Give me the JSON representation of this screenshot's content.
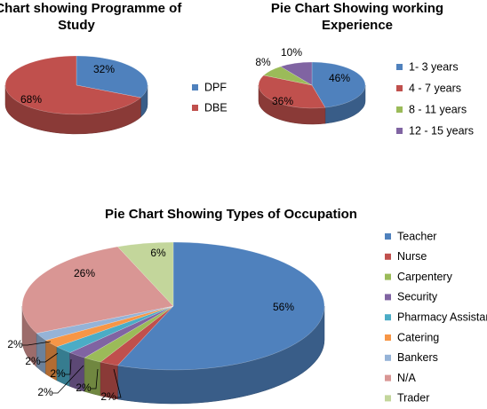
{
  "chart_data": [
    {
      "type": "pie",
      "title": "Pie Chart showing Programme of Study",
      "labels": [
        "DPF",
        "DBE"
      ],
      "values": [
        32,
        68
      ],
      "value_labels": [
        "32%",
        "68%"
      ],
      "colors": [
        "#4F81BD",
        "#C0504D"
      ],
      "legend": "right",
      "style": "3d"
    },
    {
      "type": "pie",
      "title": "Pie Chart Showing working Experience",
      "labels": [
        "1- 3 years",
        "4 - 7 years",
        "8 - 11 years",
        "12 - 15 years"
      ],
      "values": [
        46,
        36,
        8,
        10
      ],
      "value_labels": [
        "46%",
        "36%",
        "8%",
        "10%"
      ],
      "colors": [
        "#4F81BD",
        "#C0504D",
        "#9BBB59",
        "#8064A2"
      ],
      "legend": "right",
      "style": "3d"
    },
    {
      "type": "pie",
      "title": "Pie Chart Showing Types of Occupation",
      "labels": [
        "Teacher",
        "Nurse",
        "Carpentery",
        "Security",
        "Pharmacy Assistant",
        "Catering",
        "Bankers",
        "N/A",
        "Trader"
      ],
      "values": [
        56,
        2,
        2,
        2,
        2,
        2,
        2,
        26,
        6
      ],
      "value_labels": [
        "56%",
        "2%",
        "2%",
        "2%",
        "2%",
        "2%",
        "2%",
        "26%",
        "6%"
      ],
      "colors": [
        "#4F81BD",
        "#C0504D",
        "#9BBB59",
        "#8064A2",
        "#4BACC6",
        "#F79646",
        "#95B3D7",
        "#D99694",
        "#C3D69B"
      ],
      "legend": "right",
      "style": "3d"
    }
  ]
}
